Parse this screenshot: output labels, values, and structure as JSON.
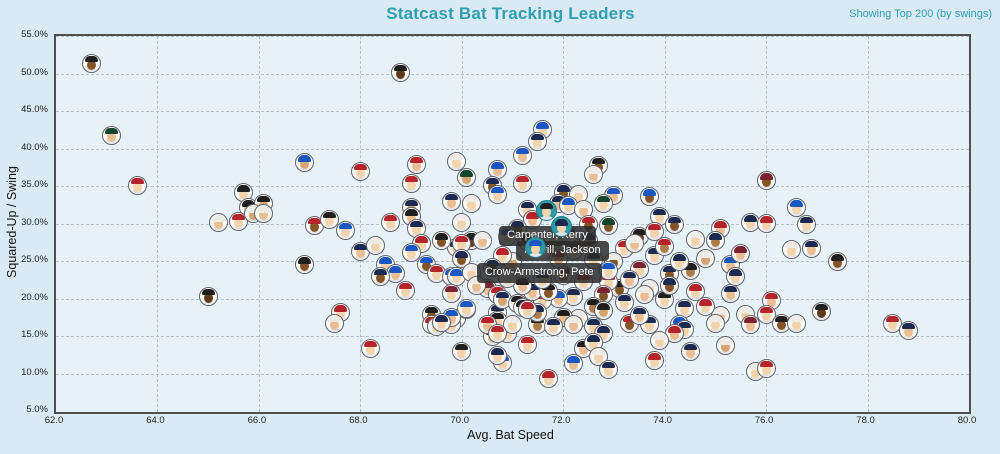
{
  "header": {
    "title": "Statcast Bat Tracking Leaders",
    "note": "Showing Top 200 (by swings)"
  },
  "colors": {
    "accent": "#2f9fb0",
    "page_bg": "#d9eaf4",
    "plot_bg": "#e6f2f8",
    "grid": "#b4c2ca",
    "axis_border": "#4f4f52",
    "highlight": "#2e9aa6",
    "tooltip_bg": "rgba(43,43,43,0.85)",
    "tooltip_text": "#ffffff",
    "cap_palette": [
      "#1c2a52",
      "#b5242c",
      "#1f1f1f",
      "#1a57c2",
      "#14452f",
      "#ecebe7",
      "#7c2230",
      "#d96c2f"
    ],
    "skin_palette": [
      "#f3d3ac",
      "#eabd92",
      "#d7a372",
      "#b07b4a",
      "#835426",
      "#5f3a1c"
    ]
  },
  "chart_data": {
    "type": "scatter",
    "title": "Statcast Bat Tracking Leaders",
    "subtitle": "Showing Top 200 (by swings)",
    "xlabel": "Avg. Bat Speed",
    "ylabel": "Squared-Up / Swing",
    "xlim": [
      62.0,
      80.0
    ],
    "ylim_pct": [
      5.0,
      55.0
    ],
    "x_ticks": [
      "62.0",
      "64.0",
      "66.0",
      "68.0",
      "70.0",
      "72.0",
      "74.0",
      "76.0",
      "78.0",
      "80.0"
    ],
    "y_ticks": [
      "55.0%",
      "50.0%",
      "45.0%",
      "40.0%",
      "35.0%",
      "30.0%",
      "25.0%",
      "20.0%",
      "15.0%",
      "10.0%",
      "5.0%"
    ],
    "grid": true,
    "marker": "player-headshot",
    "points_format": [
      "avg_bat_speed",
      "squared_up_pct",
      "cap_color_idx",
      "skin_tone_idx"
    ],
    "points": [
      [
        62.7,
        51.4,
        2,
        4
      ],
      [
        63.1,
        41.8,
        4,
        1
      ],
      [
        63.6,
        35.1,
        1,
        0
      ],
      [
        65.7,
        34.1,
        2,
        0
      ],
      [
        65.8,
        32.1,
        2,
        1
      ],
      [
        66.1,
        32.7,
        2,
        2
      ],
      [
        68.8,
        50.2,
        2,
        5
      ],
      [
        66.9,
        38.1,
        3,
        2
      ],
      [
        68.0,
        37.0,
        1,
        0
      ],
      [
        69.1,
        37.9,
        1,
        1
      ],
      [
        69.0,
        35.4,
        1,
        0
      ],
      [
        69.9,
        38.3,
        5,
        0
      ],
      [
        70.7,
        37.2,
        3,
        1
      ],
      [
        70.1,
        36.1,
        4,
        2
      ],
      [
        70.6,
        35.1,
        0,
        4
      ],
      [
        70.7,
        33.9,
        3,
        0
      ],
      [
        69.8,
        33.0,
        0,
        1
      ],
      [
        70.2,
        32.7,
        5,
        0
      ],
      [
        69.0,
        32.2,
        0,
        2
      ],
      [
        71.6,
        42.5,
        3,
        0
      ],
      [
        71.5,
        41.0,
        0,
        0
      ],
      [
        71.2,
        39.1,
        3,
        1
      ],
      [
        72.7,
        37.8,
        2,
        4
      ],
      [
        72.6,
        36.5,
        5,
        1
      ],
      [
        71.2,
        35.4,
        1,
        0
      ],
      [
        72.0,
        34.1,
        0,
        4
      ],
      [
        72.3,
        33.9,
        5,
        0
      ],
      [
        73.0,
        33.8,
        3,
        1
      ],
      [
        73.7,
        33.6,
        3,
        4
      ],
      [
        71.9,
        32.7,
        0,
        1
      ],
      [
        72.1,
        32.4,
        3,
        0
      ],
      [
        72.8,
        32.7,
        4,
        0
      ],
      [
        76.0,
        35.7,
        6,
        4
      ],
      [
        76.6,
        32.1,
        3,
        0
      ],
      [
        65.2,
        30.1,
        5,
        1
      ],
      [
        65.6,
        30.3,
        1,
        0
      ],
      [
        65.9,
        31.3,
        5,
        2
      ],
      [
        66.1,
        31.3,
        5,
        1
      ],
      [
        65.0,
        20.3,
        2,
        5
      ],
      [
        67.1,
        29.8,
        1,
        4
      ],
      [
        67.4,
        30.6,
        2,
        0
      ],
      [
        67.7,
        29.1,
        3,
        0
      ],
      [
        68.6,
        30.2,
        1,
        0
      ],
      [
        69.0,
        30.9,
        2,
        1
      ],
      [
        69.1,
        29.4,
        0,
        0
      ],
      [
        69.2,
        27.3,
        1,
        0
      ],
      [
        69.0,
        26.2,
        3,
        0
      ],
      [
        68.0,
        26.3,
        0,
        1
      ],
      [
        68.3,
        27.1,
        5,
        0
      ],
      [
        66.9,
        24.5,
        2,
        4
      ],
      [
        68.5,
        24.5,
        3,
        0
      ],
      [
        68.7,
        23.3,
        3,
        1
      ],
      [
        68.4,
        23.0,
        0,
        4
      ],
      [
        69.3,
        24.6,
        3,
        4
      ],
      [
        69.5,
        23.4,
        1,
        0
      ],
      [
        68.9,
        21.1,
        1,
        0
      ],
      [
        69.9,
        26.8,
        0,
        0
      ],
      [
        69.8,
        23.0,
        3,
        1
      ],
      [
        70.2,
        27.7,
        2,
        5
      ],
      [
        70.5,
        21.3,
        6,
        1
      ],
      [
        70.7,
        20.6,
        1,
        0
      ],
      [
        67.6,
        18.1,
        1,
        0
      ],
      [
        69.4,
        17.9,
        2,
        4
      ],
      [
        69.9,
        17.4,
        0,
        1
      ],
      [
        70.1,
        18.5,
        3,
        0
      ],
      [
        70.7,
        18.2,
        0,
        0
      ],
      [
        72.9,
        29.7,
        4,
        4
      ],
      [
        73.5,
        28.3,
        2,
        5
      ],
      [
        73.2,
        26.7,
        1,
        0
      ],
      [
        73.4,
        27.3,
        5,
        1
      ],
      [
        73.9,
        31.0,
        0,
        0
      ],
      [
        74.2,
        29.9,
        0,
        4
      ],
      [
        73.8,
        29.0,
        1,
        0
      ],
      [
        74.6,
        27.9,
        5,
        0
      ],
      [
        75.1,
        29.3,
        1,
        1
      ],
      [
        75.7,
        30.1,
        0,
        0
      ],
      [
        75.3,
        24.6,
        3,
        1
      ],
      [
        74.8,
        25.3,
        5,
        2
      ],
      [
        74.1,
        23.4,
        0,
        4
      ],
      [
        74.5,
        23.7,
        2,
        3
      ],
      [
        73.5,
        23.9,
        6,
        0
      ],
      [
        73.7,
        21.4,
        5,
        0
      ],
      [
        73.1,
        21.4,
        2,
        4
      ],
      [
        72.9,
        22.3,
        1,
        0
      ],
      [
        74.0,
        19.9,
        2,
        0
      ],
      [
        74.4,
        18.7,
        0,
        0
      ],
      [
        75.3,
        20.7,
        0,
        1
      ],
      [
        75.6,
        17.9,
        5,
        0
      ],
      [
        75.1,
        17.7,
        5,
        1
      ],
      [
        72.8,
        20.6,
        6,
        4
      ],
      [
        72.2,
        20.3,
        0,
        0
      ],
      [
        71.9,
        20.0,
        3,
        1
      ],
      [
        71.6,
        19.8,
        1,
        0
      ],
      [
        71.4,
        21.0,
        0,
        1
      ],
      [
        71.7,
        21.0,
        2,
        4
      ],
      [
        72.6,
        19.0,
        2,
        3
      ],
      [
        72.3,
        17.4,
        5,
        0
      ],
      [
        72.0,
        17.5,
        2,
        1
      ],
      [
        76.8,
        29.9,
        0,
        0
      ],
      [
        76.0,
        30.0,
        1,
        0
      ],
      [
        76.5,
        26.6,
        5,
        0
      ],
      [
        76.9,
        26.7,
        0,
        1
      ],
      [
        77.4,
        24.9,
        2,
        4
      ],
      [
        76.1,
        19.8,
        1,
        1
      ],
      [
        76.0,
        17.9,
        1,
        0
      ],
      [
        76.3,
        16.7,
        2,
        4
      ],
      [
        76.6,
        16.7,
        5,
        0
      ],
      [
        77.1,
        18.3,
        2,
        5
      ],
      [
        78.5,
        16.7,
        1,
        0
      ],
      [
        78.8,
        15.8,
        0,
        1
      ],
      [
        67.5,
        16.7,
        5,
        1
      ],
      [
        68.2,
        13.4,
        1,
        0
      ],
      [
        69.4,
        16.6,
        1,
        1
      ],
      [
        69.5,
        16.3,
        5,
        0
      ],
      [
        69.8,
        16.6,
        0,
        0
      ],
      [
        70.0,
        13.0,
        2,
        0
      ],
      [
        70.6,
        15.0,
        0,
        1
      ],
      [
        70.9,
        15.3,
        1,
        0
      ],
      [
        70.8,
        11.5,
        3,
        0
      ],
      [
        71.5,
        16.6,
        2,
        3
      ],
      [
        71.8,
        16.3,
        0,
        0
      ],
      [
        72.2,
        16.6,
        5,
        1
      ],
      [
        72.6,
        16.3,
        0,
        0
      ],
      [
        73.3,
        16.7,
        1,
        4
      ],
      [
        73.7,
        16.6,
        0,
        0
      ],
      [
        74.3,
        16.5,
        3,
        3
      ],
      [
        74.4,
        15.9,
        0,
        0
      ],
      [
        75.0,
        16.7,
        5,
        0
      ],
      [
        75.7,
        16.6,
        6,
        1
      ],
      [
        72.8,
        15.3,
        0,
        0
      ],
      [
        72.4,
        13.4,
        2,
        1
      ],
      [
        72.6,
        14.1,
        0,
        0
      ],
      [
        72.7,
        12.3,
        5,
        0
      ],
      [
        72.9,
        10.6,
        0,
        0
      ],
      [
        71.7,
        9.3,
        1,
        0
      ],
      [
        73.8,
        11.7,
        1,
        0
      ],
      [
        74.2,
        15.3,
        1,
        1
      ],
      [
        75.2,
        13.7,
        5,
        2
      ],
      [
        75.8,
        10.3,
        5,
        0
      ],
      [
        76.0,
        10.7,
        1,
        0
      ],
      [
        69.6,
        27.7,
        2,
        4
      ],
      [
        70.0,
        27.4,
        1,
        0
      ],
      [
        70.4,
        27.8,
        5,
        1
      ],
      [
        70.0,
        25.3,
        0,
        4
      ],
      [
        69.9,
        22.9,
        3,
        0
      ],
      [
        70.2,
        23.5,
        5,
        0
      ],
      [
        70.3,
        21.8,
        5,
        1
      ],
      [
        69.8,
        20.7,
        6,
        0
      ],
      [
        70.1,
        18.7,
        3,
        0
      ],
      [
        69.8,
        17.5,
        3,
        1
      ],
      [
        69.6,
        16.8,
        0,
        0
      ],
      [
        70.8,
        19.9,
        0,
        2
      ],
      [
        71.1,
        19.4,
        2,
        0
      ],
      [
        71.2,
        18.8,
        2,
        4
      ],
      [
        70.7,
        17.1,
        2,
        0
      ],
      [
        71.0,
        16.6,
        5,
        0
      ],
      [
        70.5,
        16.6,
        1,
        1
      ],
      [
        70.7,
        15.4,
        1,
        0
      ],
      [
        71.5,
        18.1,
        0,
        3
      ],
      [
        71.3,
        31.9,
        0,
        0
      ],
      [
        72.4,
        31.9,
        5,
        1
      ],
      [
        71.3,
        18.5,
        1,
        0
      ],
      [
        71.0,
        25.0,
        5,
        2
      ],
      [
        70.0,
        30.2,
        5,
        0
      ],
      [
        71.4,
        30.5,
        1,
        1
      ],
      [
        71.1,
        29.4,
        0,
        4
      ],
      [
        70.9,
        28.3,
        3,
        0
      ],
      [
        71.3,
        27.6,
        2,
        1
      ],
      [
        71.8,
        27.9,
        5,
        0
      ],
      [
        72.1,
        28.5,
        0,
        0
      ],
      [
        72.5,
        29.9,
        1,
        4
      ],
      [
        72.5,
        27.7,
        0,
        1
      ],
      [
        72.2,
        26.4,
        2,
        0
      ],
      [
        71.9,
        25.4,
        1,
        2
      ],
      [
        72.6,
        25.2,
        0,
        0
      ],
      [
        73.0,
        25.0,
        5,
        4
      ],
      [
        72.9,
        23.8,
        3,
        0
      ],
      [
        73.3,
        22.6,
        0,
        1
      ],
      [
        72.4,
        22.3,
        1,
        0
      ],
      [
        72.0,
        23.1,
        6,
        3
      ],
      [
        71.6,
        22.6,
        0,
        0
      ],
      [
        71.2,
        21.7,
        2,
        1
      ],
      [
        70.8,
        25.7,
        1,
        0
      ],
      [
        70.6,
        24.2,
        0,
        5
      ],
      [
        70.9,
        22.7,
        5,
        0
      ],
      [
        73.8,
        25.8,
        0,
        0
      ],
      [
        74.0,
        27.0,
        1,
        3
      ],
      [
        74.3,
        24.9,
        0,
        0
      ],
      [
        73.6,
        20.6,
        5,
        1
      ],
      [
        74.1,
        21.7,
        0,
        4
      ],
      [
        74.6,
        20.9,
        1,
        0
      ],
      [
        73.2,
        19.5,
        0,
        0
      ],
      [
        72.8,
        18.4,
        2,
        2
      ],
      [
        73.5,
        17.8,
        0,
        1
      ],
      [
        74.8,
        18.9,
        1,
        0
      ],
      [
        75.4,
        22.9,
        0,
        0
      ],
      [
        75.5,
        26.0,
        6,
        1
      ],
      [
        75.0,
        27.7,
        0,
        3
      ],
      [
        73.9,
        14.4,
        5,
        0
      ],
      [
        74.5,
        13.0,
        0,
        1
      ],
      [
        71.3,
        13.9,
        1,
        0
      ],
      [
        70.7,
        12.4,
        0,
        0
      ],
      [
        72.2,
        11.3,
        3,
        1
      ]
    ],
    "highlighted": [
      {
        "name": "Carpenter, Kerry",
        "avg_bat_speed": 71.7,
        "squared_up_pct": 31.5,
        "cap": 2,
        "skin": 0
      },
      {
        "name": "Merrill, Jackson",
        "avg_bat_speed": 72.0,
        "squared_up_pct": 29.3,
        "cap": 0,
        "skin": 0
      },
      {
        "name": "Crow-Armstrong, Pete",
        "avg_bat_speed": 71.5,
        "squared_up_pct": 26.6,
        "cap": 3,
        "skin": 0
      }
    ],
    "legend": null
  }
}
